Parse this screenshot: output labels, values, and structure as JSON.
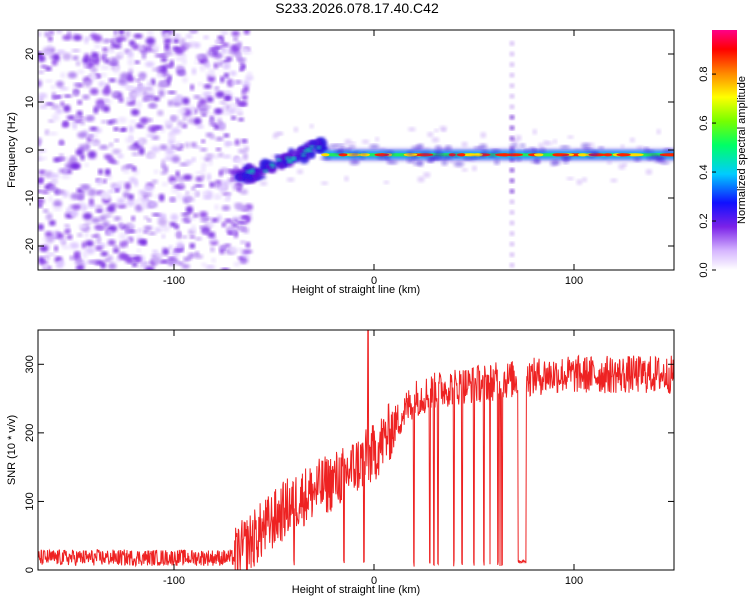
{
  "chart_data": [
    {
      "type": "heatmap",
      "title": "S233.2026.078.17.40.C42",
      "xlabel": "Height of straight line (km)",
      "ylabel": "Frequency (Hz)",
      "xlim": [
        -168,
        150
      ],
      "ylim": [
        -25,
        25
      ],
      "x_ticks": [
        -100,
        0,
        100
      ],
      "y_ticks": [
        -20,
        -10,
        0,
        10,
        20
      ],
      "colorbar": {
        "label": "Normalized spectral amplitude",
        "range": [
          0,
          0.98
        ],
        "ticks": [
          0.0,
          0.2,
          0.4,
          0.6,
          0.8
        ],
        "tick_labels": [
          "0.0",
          "0.2",
          "0.4",
          "0.6",
          "0.8"
        ]
      },
      "features": {
        "noise_region_x": [
          -168,
          -68
        ],
        "drift_segment": {
          "x": [
            -68,
            -25
          ],
          "freq_start": -6,
          "freq_end": 1
        },
        "steady_line": {
          "x": [
            -25,
            150
          ],
          "freq": -1
        },
        "vertical_artifact_x": 69
      }
    },
    {
      "type": "line",
      "xlabel": "Height of straight line (km)",
      "ylabel": "SNR (10 * v/v)",
      "xlim": [
        -168,
        150
      ],
      "ylim": [
        0,
        350
      ],
      "x_ticks": [
        -100,
        0,
        100
      ],
      "y_ticks": [
        0,
        100,
        200,
        300
      ],
      "series": [
        {
          "name": "SNR",
          "color": "#ee2222",
          "envelope": [
            {
              "x": -168,
              "y": 18
            },
            {
              "x": -70,
              "y": 18
            },
            {
              "x": -55,
              "y": 60
            },
            {
              "x": -40,
              "y": 100
            },
            {
              "x": -20,
              "y": 130
            },
            {
              "x": 0,
              "y": 170
            },
            {
              "x": 10,
              "y": 210
            },
            {
              "x": 20,
              "y": 250
            },
            {
              "x": 35,
              "y": 265
            },
            {
              "x": 60,
              "y": 275
            },
            {
              "x": 75,
              "y": 280
            },
            {
              "x": 90,
              "y": 285
            },
            {
              "x": 150,
              "y": 285
            }
          ],
          "noise_amplitude": 20,
          "dropouts": [
            -60,
            -40,
            -15,
            -5,
            20,
            28,
            30,
            32,
            40,
            44,
            50,
            55,
            58,
            62,
            63,
            64
          ],
          "low_segment": {
            "x": [
              72,
              76
            ],
            "y": 10
          }
        }
      ]
    }
  ],
  "colors": {
    "line": "#ee2222",
    "frame": "#000000"
  }
}
